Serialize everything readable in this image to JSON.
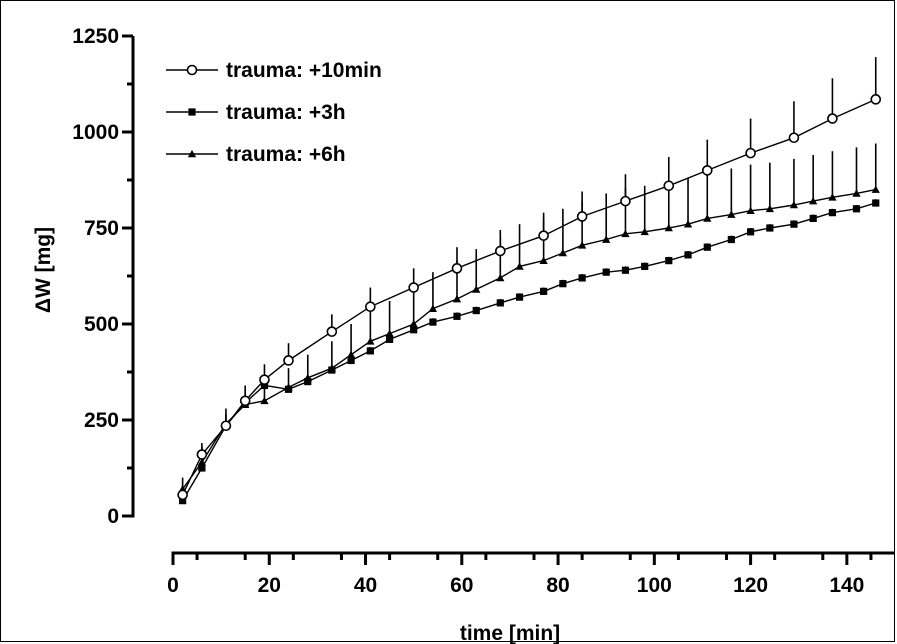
{
  "chart_data": {
    "type": "line",
    "xlabel": "time [min]",
    "ylabel": "ΔW [mg]",
    "xlim": [
      0,
      150
    ],
    "ylim": [
      0,
      1250
    ],
    "x_ticks": [
      0,
      20,
      40,
      60,
      80,
      100,
      120,
      140
    ],
    "y_ticks": [
      0,
      250,
      500,
      750,
      1000,
      1250
    ],
    "legend_position": "top-left",
    "error_bars": "upper",
    "series": [
      {
        "name": "trauma: +10min",
        "marker": "open-circle",
        "x": [
          2,
          6,
          11,
          15,
          19,
          24,
          33,
          41,
          50,
          59,
          68,
          77,
          85,
          94,
          103,
          111,
          120,
          129,
          137,
          146
        ],
        "y": [
          55,
          160,
          235,
          300,
          355,
          405,
          480,
          545,
          595,
          645,
          690,
          730,
          780,
          820,
          860,
          900,
          945,
          985,
          1035,
          1085
        ],
        "err": [
          25,
          30,
          30,
          40,
          40,
          45,
          45,
          50,
          50,
          55,
          55,
          60,
          65,
          70,
          75,
          80,
          90,
          95,
          105,
          110
        ]
      },
      {
        "name": "trauma: +3h",
        "marker": "filled-square",
        "x": [
          2,
          6,
          11,
          15,
          19,
          24,
          28,
          33,
          37,
          41,
          45,
          50,
          54,
          59,
          63,
          68,
          72,
          77,
          81,
          85,
          90,
          94,
          98,
          103,
          107,
          111,
          116,
          120,
          124,
          129,
          133,
          137,
          142,
          146
        ],
        "y": [
          40,
          125,
          235,
          295,
          340,
          330,
          350,
          380,
          405,
          430,
          460,
          485,
          505,
          520,
          535,
          555,
          570,
          585,
          605,
          620,
          635,
          640,
          650,
          665,
          680,
          700,
          720,
          740,
          750,
          760,
          775,
          790,
          800,
          815
        ],
        "err": [
          10,
          10,
          10,
          10,
          10,
          10,
          10,
          10,
          10,
          10,
          10,
          10,
          10,
          10,
          10,
          10,
          10,
          10,
          10,
          10,
          10,
          10,
          10,
          10,
          10,
          10,
          10,
          10,
          10,
          10,
          10,
          10,
          10,
          10
        ]
      },
      {
        "name": "trauma: +6h",
        "marker": "filled-triangle",
        "x": [
          2,
          6,
          11,
          15,
          19,
          24,
          28,
          33,
          37,
          41,
          45,
          50,
          54,
          59,
          63,
          68,
          72,
          77,
          81,
          85,
          90,
          94,
          98,
          103,
          107,
          111,
          116,
          120,
          124,
          129,
          133,
          137,
          142,
          146
        ],
        "y": [
          70,
          140,
          240,
          290,
          300,
          335,
          360,
          385,
          420,
          455,
          475,
          500,
          540,
          565,
          590,
          620,
          650,
          665,
          685,
          705,
          720,
          735,
          740,
          750,
          760,
          775,
          785,
          795,
          800,
          810,
          820,
          830,
          840,
          850
        ],
        "err": [
          30,
          40,
          40,
          40,
          50,
          50,
          60,
          70,
          80,
          80,
          85,
          90,
          95,
          100,
          105,
          105,
          110,
          110,
          115,
          115,
          120,
          120,
          120,
          120,
          120,
          120,
          120,
          120,
          120,
          120,
          120,
          120,
          120,
          120
        ]
      }
    ]
  }
}
